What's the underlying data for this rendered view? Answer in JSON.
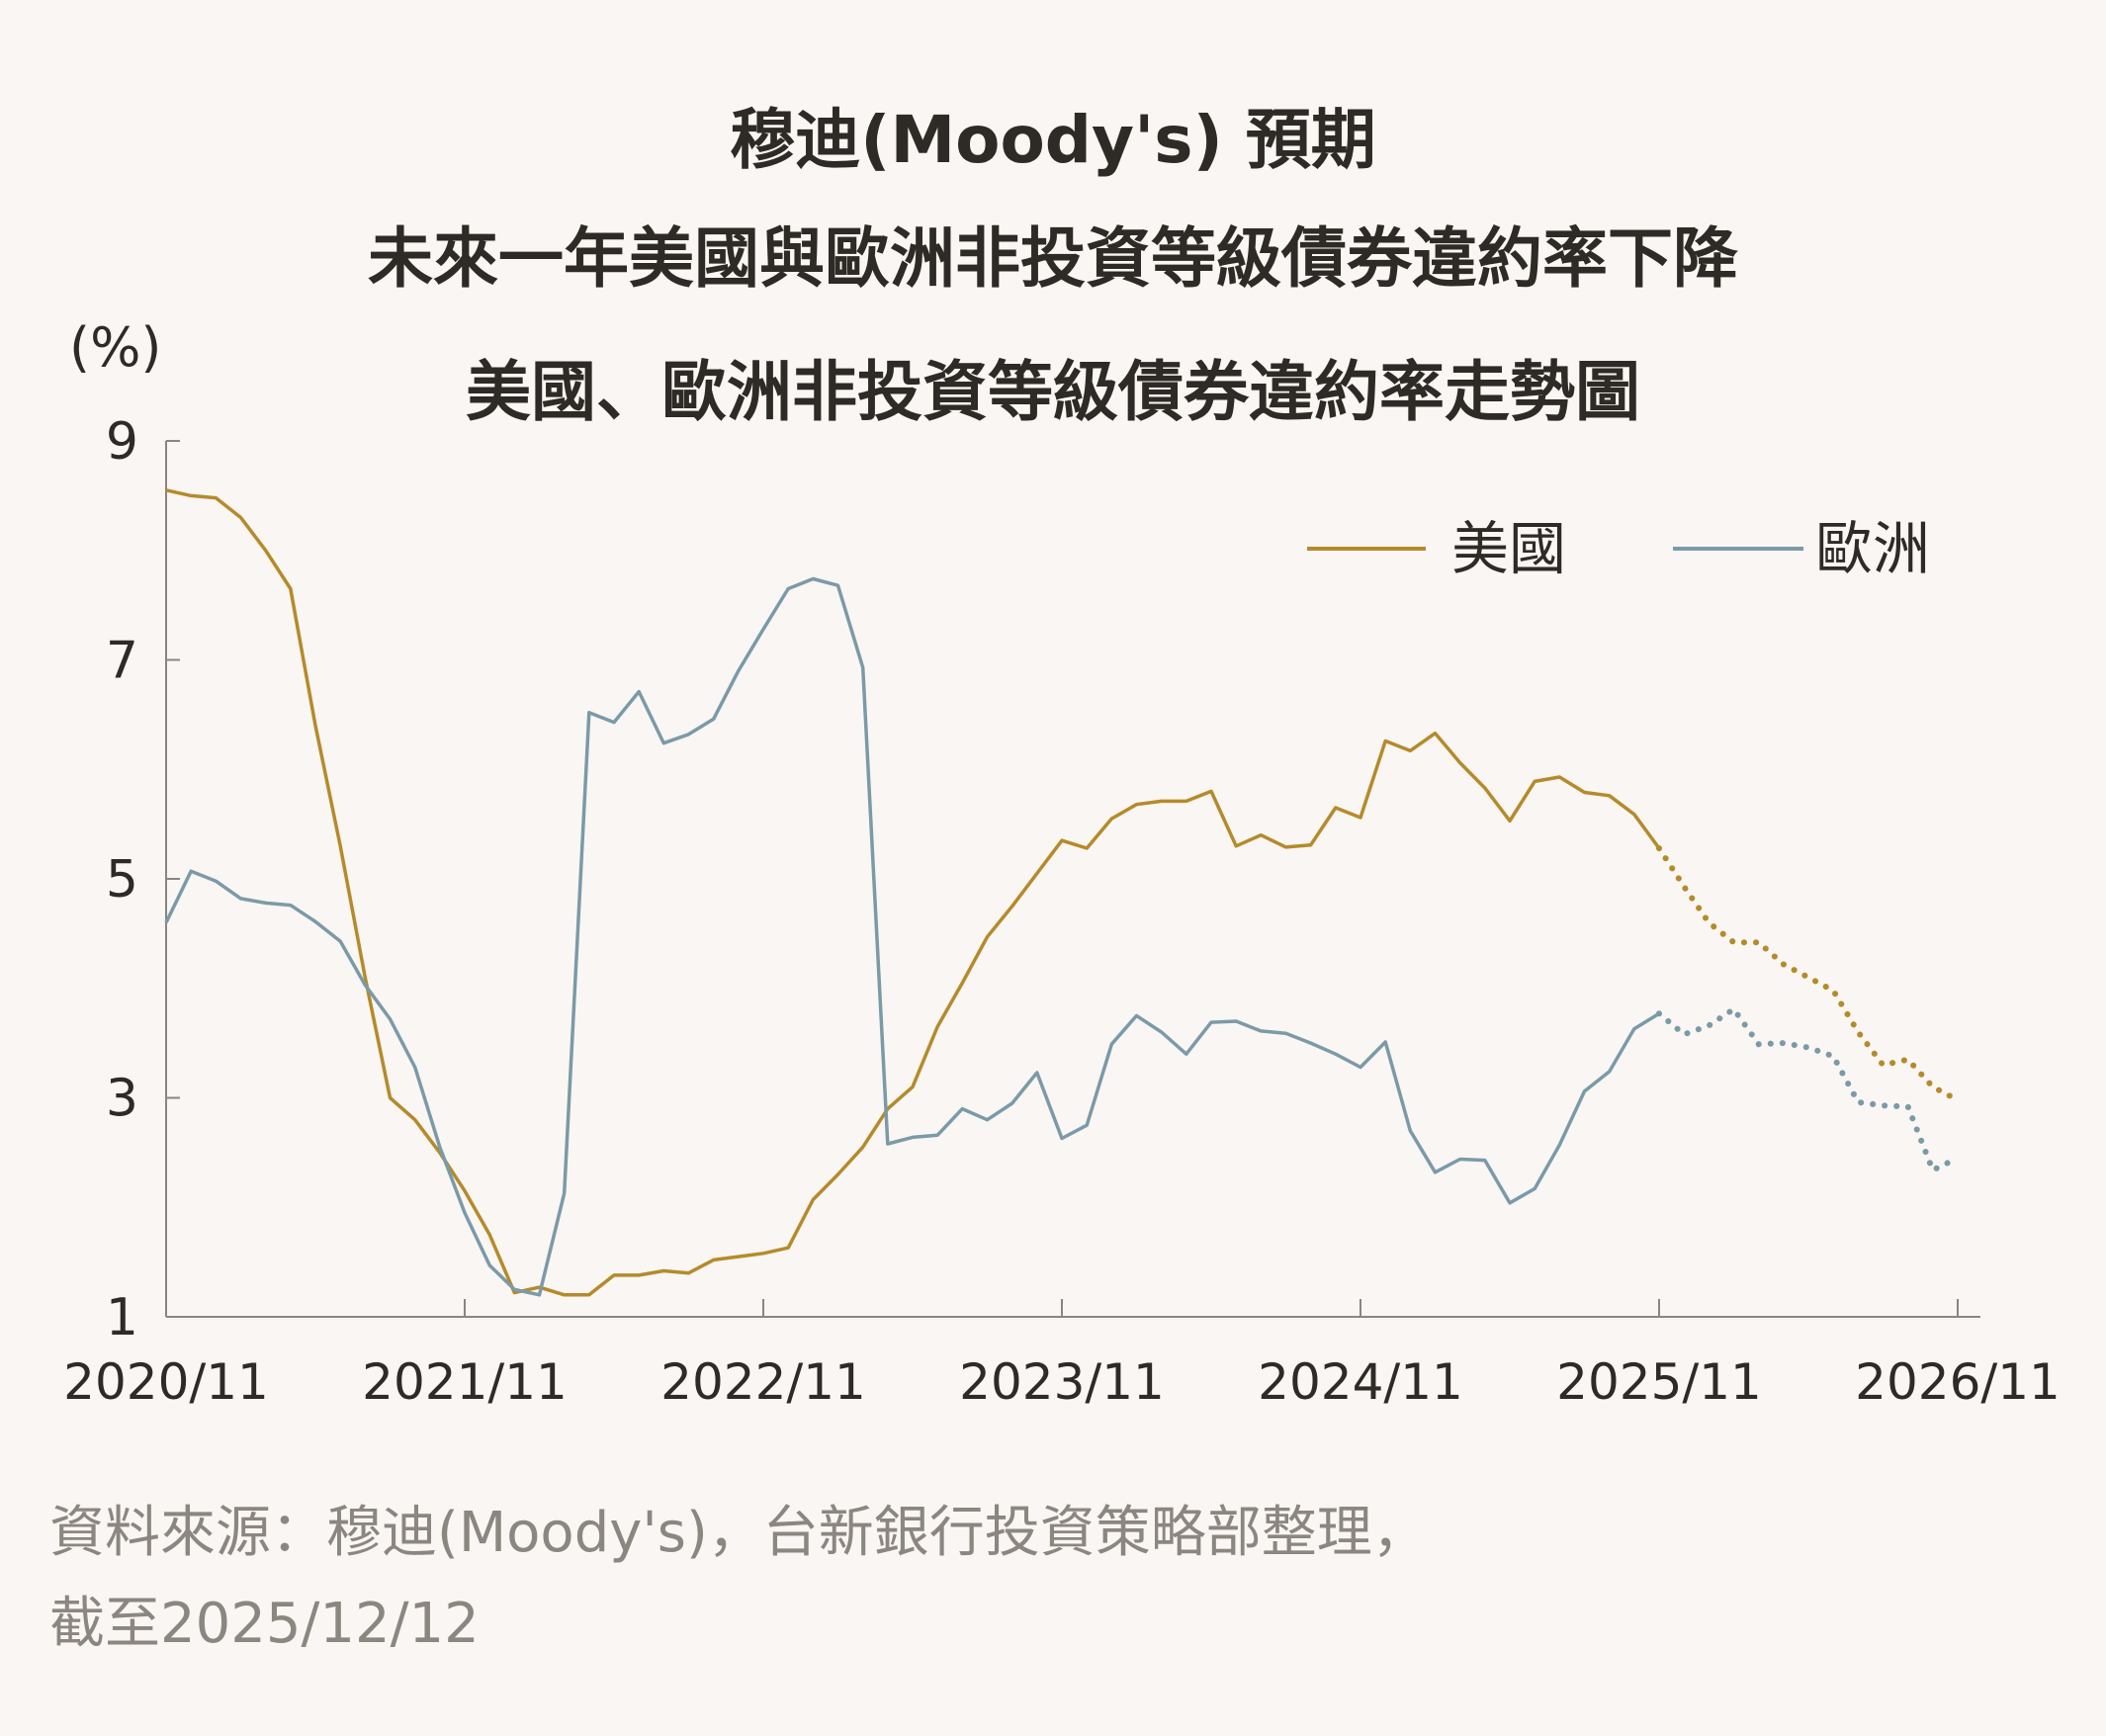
{
  "title": {
    "line1": "穆迪(Moody's) 預期",
    "line2": "未來一年美國與歐洲非投資等級債券違約率下降"
  },
  "subtitle": "美國、歐洲非投資等級債券違約率走勢圖",
  "source": {
    "line1": "資料來源：穆迪(Moody's)，台新銀行投資策略部整理，",
    "line2": "截至2025/12/12"
  },
  "chart_data": {
    "type": "line",
    "ylabel": "(%)",
    "ylim": [
      1,
      9
    ],
    "yticks": [
      1,
      3,
      5,
      7,
      9
    ],
    "x_unit": "month",
    "xlim": [
      "2020/11",
      "2026/11"
    ],
    "xtick_labels": [
      "2020/11",
      "2021/11",
      "2022/11",
      "2023/11",
      "2024/11",
      "2025/11",
      "2026/11"
    ],
    "legend_position": "top-right",
    "series": [
      {
        "name": "美國",
        "color": "#b58a2a",
        "actual": [
          [
            "2020/11",
            8.55
          ],
          [
            "2020/12",
            8.5
          ],
          [
            "2021/01",
            8.48
          ],
          [
            "2021/02",
            8.3
          ],
          [
            "2021/03",
            8.0
          ],
          [
            "2021/04",
            7.65
          ],
          [
            "2021/05",
            6.4
          ],
          [
            "2021/06",
            5.3
          ],
          [
            "2021/07",
            4.1
          ],
          [
            "2021/08",
            3.0
          ],
          [
            "2021/09",
            2.8
          ],
          [
            "2021/10",
            2.5
          ],
          [
            "2021/11",
            2.15
          ],
          [
            "2021/12",
            1.75
          ],
          [
            "2022/01",
            1.22
          ],
          [
            "2022/02",
            1.27
          ],
          [
            "2022/03",
            1.2
          ],
          [
            "2022/04",
            1.2
          ],
          [
            "2022/05",
            1.38
          ],
          [
            "2022/06",
            1.38
          ],
          [
            "2022/07",
            1.42
          ],
          [
            "2022/08",
            1.4
          ],
          [
            "2022/09",
            1.52
          ],
          [
            "2022/10",
            1.55
          ],
          [
            "2022/11",
            1.58
          ],
          [
            "2022/12",
            1.63
          ],
          [
            "2023/01",
            2.07
          ],
          [
            "2023/02",
            2.3
          ],
          [
            "2023/03",
            2.55
          ],
          [
            "2023/04",
            2.9
          ],
          [
            "2023/05",
            3.1
          ],
          [
            "2023/06",
            3.65
          ],
          [
            "2023/07",
            4.05
          ],
          [
            "2023/08",
            4.47
          ],
          [
            "2023/09",
            4.75
          ],
          [
            "2023/10",
            5.05
          ],
          [
            "2023/11",
            5.35
          ],
          [
            "2023/12",
            5.28
          ],
          [
            "2024/01",
            5.55
          ],
          [
            "2024/02",
            5.68
          ],
          [
            "2024/03",
            5.71
          ],
          [
            "2024/04",
            5.71
          ],
          [
            "2024/05",
            5.8
          ],
          [
            "2024/06",
            5.3
          ],
          [
            "2024/07",
            5.4
          ],
          [
            "2024/08",
            5.29
          ],
          [
            "2024/09",
            5.31
          ],
          [
            "2024/10",
            5.65
          ],
          [
            "2024/11",
            5.56
          ],
          [
            "2024/12",
            6.26
          ],
          [
            "2025/01",
            6.17
          ],
          [
            "2025/02",
            6.33
          ],
          [
            "2025/03",
            6.06
          ],
          [
            "2025/04",
            5.83
          ],
          [
            "2025/05",
            5.53
          ],
          [
            "2025/06",
            5.89
          ],
          [
            "2025/07",
            5.93
          ],
          [
            "2025/08",
            5.79
          ],
          [
            "2025/09",
            5.76
          ],
          [
            "2025/10",
            5.59
          ],
          [
            "2025/11",
            5.28
          ]
        ],
        "forecast": [
          [
            "2025/11",
            5.28
          ],
          [
            "2025/12",
            4.93
          ],
          [
            "2026/01",
            4.6
          ],
          [
            "2026/02",
            4.42
          ],
          [
            "2026/03",
            4.42
          ],
          [
            "2026/04",
            4.22
          ],
          [
            "2026/05",
            4.1
          ],
          [
            "2026/06",
            3.98
          ],
          [
            "2026/07",
            3.6
          ],
          [
            "2026/08",
            3.3
          ],
          [
            "2026/09",
            3.35
          ],
          [
            "2026/10",
            3.1
          ],
          [
            "2026/11",
            2.98
          ]
        ]
      },
      {
        "name": "歐洲",
        "color": "#7b9aa8",
        "actual": [
          [
            "2020/11",
            4.6
          ],
          [
            "2020/12",
            5.07
          ],
          [
            "2021/01",
            4.98
          ],
          [
            "2021/02",
            4.82
          ],
          [
            "2021/03",
            4.78
          ],
          [
            "2021/04",
            4.76
          ],
          [
            "2021/05",
            4.61
          ],
          [
            "2021/06",
            4.43
          ],
          [
            "2021/07",
            4.03
          ],
          [
            "2021/08",
            3.72
          ],
          [
            "2021/09",
            3.28
          ],
          [
            "2021/10",
            2.55
          ],
          [
            "2021/11",
            1.95
          ],
          [
            "2021/12",
            1.47
          ],
          [
            "2022/01",
            1.25
          ],
          [
            "2022/02",
            1.2
          ],
          [
            "2022/03",
            2.13
          ],
          [
            "2022/04",
            6.52
          ],
          [
            "2022/05",
            6.43
          ],
          [
            "2022/06",
            6.71
          ],
          [
            "2022/07",
            6.24
          ],
          [
            "2022/08",
            6.32
          ],
          [
            "2022/09",
            6.46
          ],
          [
            "2022/10",
            6.9
          ],
          [
            "2022/11",
            7.28
          ],
          [
            "2022/12",
            7.65
          ],
          [
            "2023/01",
            7.74
          ],
          [
            "2023/02",
            7.68
          ],
          [
            "2023/03",
            6.93
          ],
          [
            "2023/04",
            2.58
          ],
          [
            "2023/05",
            2.64
          ],
          [
            "2023/06",
            2.66
          ],
          [
            "2023/07",
            2.9
          ],
          [
            "2023/08",
            2.8
          ],
          [
            "2023/09",
            2.95
          ],
          [
            "2023/10",
            3.23
          ],
          [
            "2023/11",
            2.63
          ],
          [
            "2023/12",
            2.75
          ],
          [
            "2024/01",
            3.49
          ],
          [
            "2024/02",
            3.75
          ],
          [
            "2024/03",
            3.6
          ],
          [
            "2024/04",
            3.4
          ],
          [
            "2024/05",
            3.69
          ],
          [
            "2024/06",
            3.7
          ],
          [
            "2024/07",
            3.61
          ],
          [
            "2024/08",
            3.59
          ],
          [
            "2024/09",
            3.5
          ],
          [
            "2024/10",
            3.4
          ],
          [
            "2024/11",
            3.28
          ],
          [
            "2024/12",
            3.51
          ],
          [
            "2025/01",
            2.7
          ],
          [
            "2025/02",
            2.32
          ],
          [
            "2025/03",
            2.44
          ],
          [
            "2025/04",
            2.43
          ],
          [
            "2025/05",
            2.04
          ],
          [
            "2025/06",
            2.17
          ],
          [
            "2025/07",
            2.57
          ],
          [
            "2025/08",
            3.06
          ],
          [
            "2025/09",
            3.24
          ],
          [
            "2025/10",
            3.63
          ],
          [
            "2025/11",
            3.77
          ]
        ],
        "forecast": [
          [
            "2025/11",
            3.77
          ],
          [
            "2025/12",
            3.58
          ],
          [
            "2026/01",
            3.66
          ],
          [
            "2026/02",
            3.81
          ],
          [
            "2026/03",
            3.49
          ],
          [
            "2026/04",
            3.5
          ],
          [
            "2026/05",
            3.46
          ],
          [
            "2026/06",
            3.38
          ],
          [
            "2026/07",
            2.96
          ],
          [
            "2026/08",
            2.93
          ],
          [
            "2026/09",
            2.92
          ],
          [
            "2026/10",
            2.34
          ],
          [
            "2026/11",
            2.45
          ]
        ]
      }
    ]
  }
}
